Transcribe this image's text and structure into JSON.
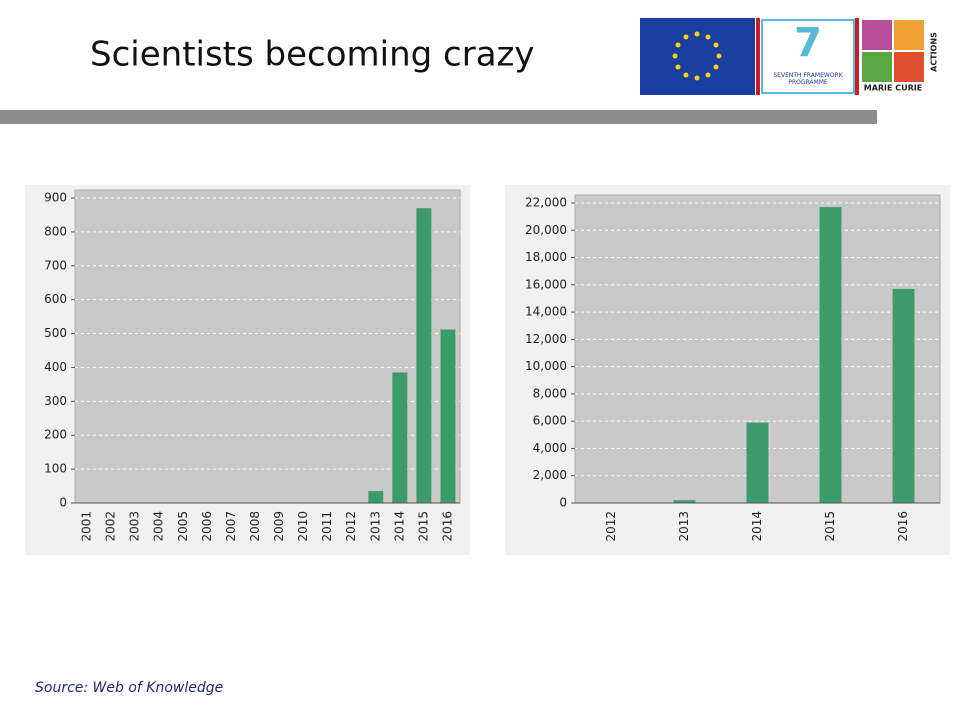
{
  "title": "Scientists becoming crazy",
  "source": "Source: Web of Knowledge",
  "logos": [
    "SEVENTH FRAMEWORK PROGRAMME",
    "MARIE CURIE",
    "ACTIONS"
  ],
  "chart_data": [
    {
      "type": "bar",
      "color": "#3d9a6b",
      "grid": true,
      "categories": [
        "2001",
        "2002",
        "2003",
        "2004",
        "2005",
        "2006",
        "2007",
        "2008",
        "2009",
        "2010",
        "2011",
        "2012",
        "2013",
        "2014",
        "2015",
        "2016"
      ],
      "values": [
        0,
        0,
        0,
        0,
        0,
        0,
        0,
        0,
        0,
        0,
        0,
        0,
        35,
        385,
        870,
        512
      ],
      "ylim": [
        0,
        900
      ],
      "yticks": [
        0,
        100,
        200,
        300,
        400,
        500,
        600,
        700,
        800,
        900
      ]
    },
    {
      "type": "bar",
      "color": "#3d9a6b",
      "grid": true,
      "categories": [
        "2012",
        "2013",
        "2014",
        "2015",
        "2016"
      ],
      "values": [
        0,
        200,
        5900,
        21700,
        15700
      ],
      "ylim": [
        0,
        22000
      ],
      "yticks": [
        0,
        {
          "value": 2000,
          "label": "2,000"
        },
        {
          "value": 4000,
          "label": "4,000"
        },
        {
          "value": 6000,
          "label": "6,000"
        },
        {
          "value": 8000,
          "label": "8,000"
        },
        {
          "value": 10000,
          "label": "10,000"
        },
        {
          "value": 12000,
          "label": "12,000"
        },
        {
          "value": 14000,
          "label": "14,000"
        },
        {
          "value": 16000,
          "label": "16,000"
        },
        {
          "value": 18000,
          "label": "18,000"
        },
        {
          "value": 20000,
          "label": "20,000"
        },
        {
          "value": 22000,
          "label": "22,000"
        }
      ]
    }
  ]
}
